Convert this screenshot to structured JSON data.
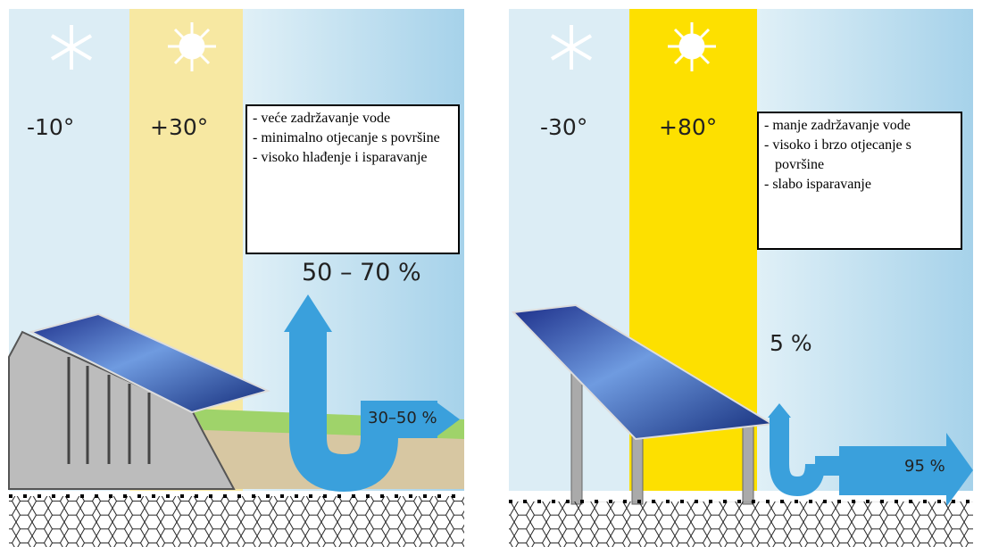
{
  "panels": [
    {
      "cold": "-10°",
      "hot": "+30°",
      "notes": [
        "- veće zadržavanje vode",
        "- minimalno otjecanje s površine",
        "- visoko hlađenje i isparavanje"
      ],
      "up": "50 – 70 %",
      "side": "30–50 %"
    },
    {
      "cold": "-30°",
      "hot": "+80°",
      "notes": [
        "- manje zadržavanje vode",
        "- visoko i brzo otjecanje s površine",
        "- slabo isparavanje"
      ],
      "up": "5 %",
      "side": "95 %"
    }
  ]
}
